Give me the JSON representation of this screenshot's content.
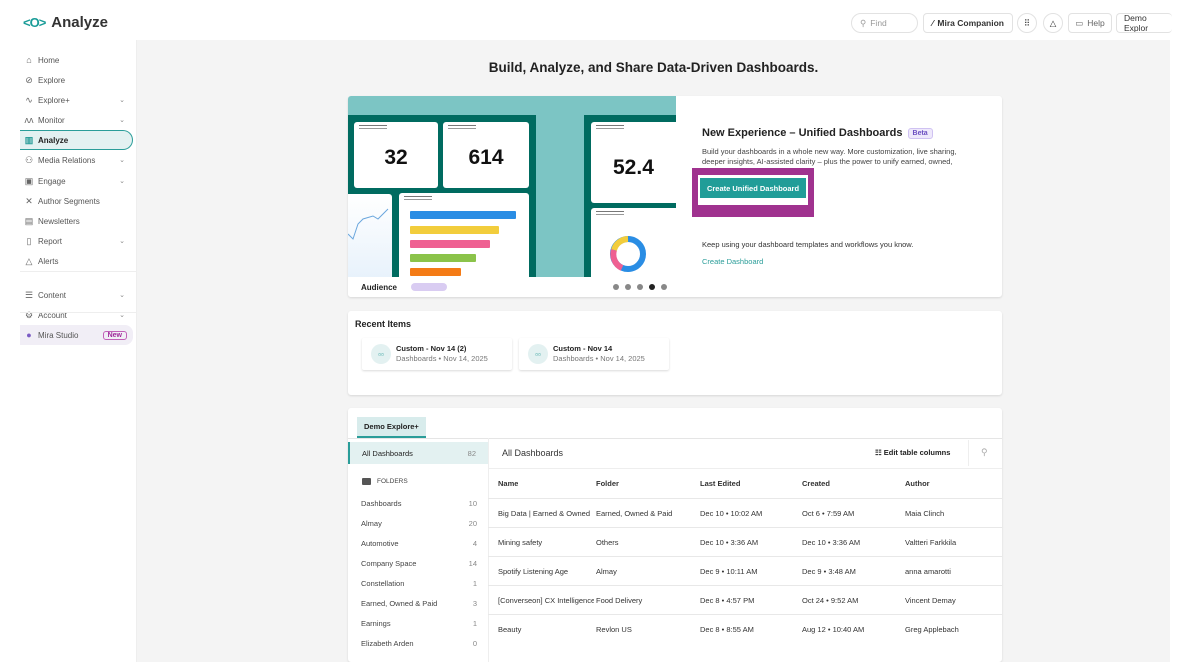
{
  "header": {
    "app_title": "Analyze",
    "find_placeholder": "Find",
    "mira_companion": "Mira Companion",
    "help": "Help",
    "workspace": "Demo Explor"
  },
  "sidebar": {
    "items": [
      {
        "label": "Home",
        "icon": "home-icon"
      },
      {
        "label": "Explore",
        "icon": "compass-icon"
      },
      {
        "label": "Explore+",
        "icon": "trend-icon",
        "chevron": true
      },
      {
        "label": "Monitor",
        "icon": "monitor-icon",
        "chevron": true
      },
      {
        "label": "Analyze",
        "icon": "chart-icon",
        "active": true
      },
      {
        "label": "Media Relations",
        "icon": "people-icon",
        "chevron": true
      },
      {
        "label": "Engage",
        "icon": "chat-icon",
        "chevron": true
      },
      {
        "label": "Author Segments",
        "icon": "segments-icon"
      },
      {
        "label": "Newsletters",
        "icon": "newsletter-icon"
      },
      {
        "label": "Report",
        "icon": "report-icon",
        "chevron": true
      },
      {
        "label": "Alerts",
        "icon": "bell-icon"
      },
      {
        "label": "Content",
        "icon": "sliders-icon",
        "chevron": true
      },
      {
        "label": "Account",
        "icon": "gear-icon",
        "chevron": true
      },
      {
        "label": "Mira Studio",
        "icon": "mira-icon",
        "badge": "New"
      }
    ]
  },
  "main": {
    "title": "Build, Analyze, and Share Data-Driven Dashboards.",
    "hero": {
      "illustration": {
        "tile1": "32",
        "tile2": "614",
        "tile3": "52.4",
        "caption": "Audience",
        "slides": 5,
        "active_slide": 4
      },
      "heading": "New Experience – Unified Dashboards",
      "badge": "Beta",
      "description": "Build your dashboards in a whole new way. More customization, live sharing, deeper insights, AI-assisted clarity – plus the power to unify earned, owned,",
      "primary_button": "Create Unified Dashboard",
      "legacy_text": "Keep using your dashboard templates and workflows you know.",
      "legacy_link": "Create Dashboard"
    },
    "recent": {
      "title": "Recent Items",
      "items": [
        {
          "name": "Custom - Nov 14 (2)",
          "meta": "Dashboards • Nov 14, 2025"
        },
        {
          "name": "Custom - Nov 14",
          "meta": "Dashboards • Nov 14, 2025"
        }
      ]
    },
    "dashboards": {
      "tab": "Demo Explore+",
      "all_label": "All Dashboards",
      "all_count": "82",
      "folders_label": "FOLDERS",
      "folders": [
        {
          "name": "Dashboards",
          "count": "10"
        },
        {
          "name": "Almay",
          "count": "20"
        },
        {
          "name": "Automotive",
          "count": "4"
        },
        {
          "name": "Company Space",
          "count": "14"
        },
        {
          "name": "Constellation",
          "count": "1"
        },
        {
          "name": "Earned, Owned & Paid",
          "count": "3"
        },
        {
          "name": "Earnings",
          "count": "1"
        },
        {
          "name": "Elizabeth Arden",
          "count": "0"
        }
      ],
      "table_title": "All Dashboards",
      "edit_columns": "Edit table columns",
      "columns": [
        "Name",
        "Folder",
        "Last Edited",
        "Created",
        "Author"
      ],
      "rows": [
        [
          "Big Data | Earned & Owned",
          "Earned, Owned & Paid",
          "Dec 10 • 10:02 AM",
          "Oct 6 • 7:59 AM",
          "Maia Clinch"
        ],
        [
          "Mining safety",
          "Others",
          "Dec 10 • 3:36 AM",
          "Dec 10 • 3:36 AM",
          "Valtteri Farkkila"
        ],
        [
          "Spotify Listening Age",
          "Almay",
          "Dec 9 • 10:11 AM",
          "Dec 9 • 3:48 AM",
          "anna amarotti"
        ],
        [
          "[Converseon] CX Intelligence",
          "Food Delivery",
          "Dec 8 • 4:57 PM",
          "Oct 24 • 9:52 AM",
          "Vincent Demay"
        ],
        [
          "Beauty",
          "Revlon US",
          "Dec 8 • 8:55 AM",
          "Aug 12 • 10:40 AM",
          "Greg Applebach"
        ]
      ]
    }
  },
  "colors": {
    "accent": "#2a9d99",
    "highlight": "#a0328f",
    "beta": "#6b4fc1"
  }
}
